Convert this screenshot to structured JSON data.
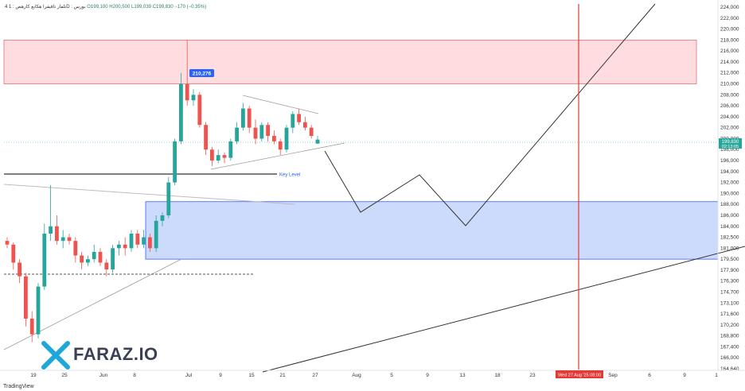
{
  "header": {
    "symbol": "تلفار تاقیقرا هکابع کارهص : 1D : بورس",
    "open": "O199,100",
    "high": "H200,500",
    "low": "L199,039",
    "close": "C199,830",
    "change": "−170 (−0.35%)",
    "indicator_mark": "4"
  },
  "watermark": "FARAZ.IO",
  "footer": "TradingView",
  "colors": {
    "up": "#26a69a",
    "down": "#ef5350",
    "supply_zone_fill": "#ffcdd2",
    "demand_zone_fill": "#bbcdfa",
    "vline": "#e53935",
    "key_level_text": "#2962ff"
  },
  "chart_data": {
    "type": "candlestick",
    "price_axis_ticks": [
      "224,000",
      "222,000",
      "220,000",
      "218,000",
      "216,000",
      "214,000",
      "212,000",
      "210,000",
      "208,000",
      "206,000",
      "204,000",
      "202,000",
      "200,000",
      "198,000",
      "196,000",
      "194,000",
      "192,000",
      "190,000",
      "188,000",
      "186,000",
      "184,000",
      "182,500",
      "181,000",
      "179,500",
      "177,900",
      "176,300",
      "174,700",
      "173,100",
      "171,600",
      "170,200",
      "168,800",
      "167,400",
      "166,000",
      "164,640"
    ],
    "x_axis_ticks": [
      "19",
      "25",
      "Jun",
      "8",
      "Jul",
      "9",
      "15",
      "21",
      "27",
      "Aug",
      "5",
      "9",
      "13",
      "18",
      "23",
      "Sep",
      "6",
      "9",
      "1"
    ],
    "last_price_label": "199,830",
    "countdown_label": "02:13:05",
    "high_label": "210,276",
    "key_level_label": "Key Level",
    "crosshair_date_label": "Wed 27 Aug '25 08:00",
    "ylim": [
      164640,
      224000
    ],
    "zones": [
      {
        "name": "supply",
        "low": 210000,
        "high": 218000
      },
      {
        "name": "demand",
        "low": 179500,
        "high": 188500
      }
    ],
    "candles": [
      {
        "o": 182000,
        "h": 182500,
        "l": 181000,
        "c": 181500
      },
      {
        "o": 181500,
        "h": 181800,
        "l": 178000,
        "c": 179000
      },
      {
        "o": 179000,
        "h": 179500,
        "l": 176000,
        "c": 177000
      },
      {
        "o": 177000,
        "h": 177500,
        "l": 170000,
        "c": 171000
      },
      {
        "o": 171000,
        "h": 172000,
        "l": 168000,
        "c": 169000
      },
      {
        "o": 169000,
        "h": 176000,
        "l": 168500,
        "c": 175500
      },
      {
        "o": 175500,
        "h": 184500,
        "l": 175000,
        "c": 183000
      },
      {
        "o": 183000,
        "h": 191500,
        "l": 182000,
        "c": 184000
      },
      {
        "o": 184000,
        "h": 186000,
        "l": 181500,
        "c": 182000
      },
      {
        "o": 182000,
        "h": 183500,
        "l": 181000,
        "c": 182500
      },
      {
        "o": 182500,
        "h": 183000,
        "l": 181500,
        "c": 182000
      },
      {
        "o": 182000,
        "h": 182500,
        "l": 179000,
        "c": 180000
      },
      {
        "o": 180000,
        "h": 180500,
        "l": 178000,
        "c": 179000
      },
      {
        "o": 179000,
        "h": 180000,
        "l": 178500,
        "c": 179500
      },
      {
        "o": 179500,
        "h": 181500,
        "l": 179000,
        "c": 180500
      },
      {
        "o": 180500,
        "h": 181000,
        "l": 178500,
        "c": 179000
      },
      {
        "o": 179000,
        "h": 179500,
        "l": 177000,
        "c": 178000
      },
      {
        "o": 178000,
        "h": 181500,
        "l": 177500,
        "c": 181000
      },
      {
        "o": 181000,
        "h": 182000,
        "l": 180000,
        "c": 181500
      },
      {
        "o": 181500,
        "h": 182500,
        "l": 180000,
        "c": 181000
      },
      {
        "o": 181000,
        "h": 183500,
        "l": 180500,
        "c": 183000
      },
      {
        "o": 183000,
        "h": 183500,
        "l": 181000,
        "c": 181500
      },
      {
        "o": 181500,
        "h": 183500,
        "l": 181000,
        "c": 182500
      },
      {
        "o": 182500,
        "h": 183000,
        "l": 180500,
        "c": 181000
      },
      {
        "o": 181000,
        "h": 186000,
        "l": 180500,
        "c": 185000
      },
      {
        "o": 185000,
        "h": 186500,
        "l": 184000,
        "c": 186000
      },
      {
        "o": 186000,
        "h": 193000,
        "l": 185500,
        "c": 192000
      },
      {
        "o": 192000,
        "h": 200000,
        "l": 191500,
        "c": 199500
      },
      {
        "o": 199500,
        "h": 212000,
        "l": 199000,
        "c": 210000
      },
      {
        "o": 210000,
        "h": 218000,
        "l": 206000,
        "c": 207000
      },
      {
        "o": 207000,
        "h": 209000,
        "l": 206000,
        "c": 208000
      },
      {
        "o": 208000,
        "h": 208500,
        "l": 202000,
        "c": 202500
      },
      {
        "o": 202500,
        "h": 203000,
        "l": 197000,
        "c": 198000
      },
      {
        "o": 198000,
        "h": 198500,
        "l": 195000,
        "c": 196000
      },
      {
        "o": 196000,
        "h": 198000,
        "l": 195500,
        "c": 197000
      },
      {
        "o": 197000,
        "h": 197500,
        "l": 195500,
        "c": 196500
      },
      {
        "o": 196500,
        "h": 200000,
        "l": 196000,
        "c": 199500
      },
      {
        "o": 199500,
        "h": 203000,
        "l": 199000,
        "c": 202000
      },
      {
        "o": 202000,
        "h": 206500,
        "l": 201500,
        "c": 205500
      },
      {
        "o": 205500,
        "h": 206000,
        "l": 201000,
        "c": 202000
      },
      {
        "o": 202000,
        "h": 203500,
        "l": 199000,
        "c": 200000
      },
      {
        "o": 200000,
        "h": 203000,
        "l": 199500,
        "c": 202500
      },
      {
        "o": 202500,
        "h": 203000,
        "l": 199500,
        "c": 200500
      },
      {
        "o": 200500,
        "h": 201500,
        "l": 199000,
        "c": 199500
      },
      {
        "o": 199500,
        "h": 200000,
        "l": 197000,
        "c": 198000
      },
      {
        "o": 198000,
        "h": 202500,
        "l": 197500,
        "c": 202000
      },
      {
        "o": 202000,
        "h": 205000,
        "l": 201000,
        "c": 204500
      },
      {
        "o": 204500,
        "h": 205500,
        "l": 202500,
        "c": 203000
      },
      {
        "o": 203000,
        "h": 204000,
        "l": 201500,
        "c": 202000
      },
      {
        "o": 202000,
        "h": 202500,
        "l": 200000,
        "c": 200500
      },
      {
        "o": 199100,
        "h": 200500,
        "l": 199039,
        "c": 199830
      }
    ]
  }
}
